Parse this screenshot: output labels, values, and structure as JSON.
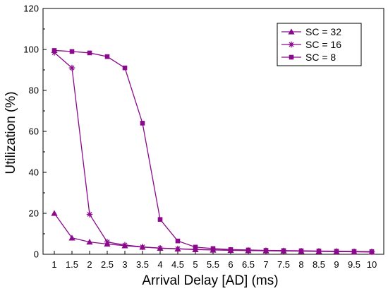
{
  "chart_data": {
    "type": "line",
    "title": "",
    "xlabel": "Arrival Delay [AD] (ms)",
    "ylabel": "Utilization (%)",
    "x": [
      "1",
      "1.5",
      "2",
      "2.5",
      "3",
      "3.5",
      "4",
      "4.5",
      "5",
      "5.5",
      "6",
      "6.5",
      "7",
      "7.5",
      "8",
      "8.5",
      "9",
      "9.5",
      "10"
    ],
    "ylim": [
      0,
      120
    ],
    "yticks": [
      0,
      20,
      40,
      60,
      80,
      100,
      120
    ],
    "grid": false,
    "legend_position": "top-right",
    "color": "#8B0A8B",
    "series": [
      {
        "name": "SC = 32",
        "marker": "triangle",
        "values": [
          20,
          8,
          6,
          5,
          4.2,
          3.5,
          3,
          2.6,
          2.3,
          2.1,
          1.9,
          1.8,
          1.7,
          1.6,
          1.5,
          1.4,
          1.3,
          1.2,
          1.1
        ]
      },
      {
        "name": "SC = 16",
        "marker": "star",
        "values": [
          98.5,
          91,
          19.5,
          6,
          4.5,
          3.6,
          3,
          2.7,
          2.4,
          2.2,
          2.0,
          1.9,
          1.8,
          1.7,
          1.6,
          1.5,
          1.4,
          1.3,
          1.2
        ]
      },
      {
        "name": "SC = 8",
        "marker": "square",
        "values": [
          99.5,
          99,
          98.3,
          96.5,
          91,
          64,
          17,
          6.5,
          3.5,
          2.8,
          2.3,
          2.1,
          1.9,
          1.8,
          1.7,
          1.6,
          1.5,
          1.4,
          1.3
        ]
      }
    ]
  }
}
